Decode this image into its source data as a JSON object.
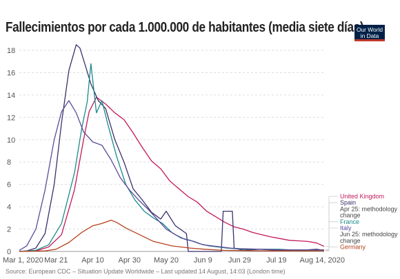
{
  "header": {
    "title": "Fallecimientos por cada 1.000.000 de habitantes (media siete días)",
    "logo": [
      "Our World",
      "in Data"
    ]
  },
  "footer": {
    "source": "Source: European CDC – Situation Update Worldwide – Last updated 14 August, 14:03 (London time)"
  },
  "chart_data": {
    "type": "line",
    "ylim": [
      0,
      18
    ],
    "yticks": [
      0,
      2,
      4,
      6,
      8,
      10,
      12,
      14,
      16,
      18
    ],
    "xlim": [
      "2020-03-01",
      "2020-08-14"
    ],
    "xticks": [
      {
        "label": "Mar 1, 2020",
        "date": "2020-03-01"
      },
      {
        "label": "Mar 21",
        "date": "2020-03-21"
      },
      {
        "label": "Apr 10",
        "date": "2020-04-10"
      },
      {
        "label": "Apr 30",
        "date": "2020-04-30"
      },
      {
        "label": "May 20",
        "date": "2020-05-20"
      },
      {
        "label": "Jun 9",
        "date": "2020-06-09"
      },
      {
        "label": "Jun 29",
        "date": "2020-06-29"
      },
      {
        "label": "Jul 19",
        "date": "2020-07-19"
      },
      {
        "label": "Aug 14, 2020",
        "date": "2020-08-14"
      }
    ],
    "series": [
      {
        "name": "United Kingdom",
        "color": "#c2185b",
        "points": [
          [
            "2020-03-01",
            0
          ],
          [
            "2020-03-10",
            0.05
          ],
          [
            "2020-03-17",
            0.4
          ],
          [
            "2020-03-24",
            1.5
          ],
          [
            "2020-03-31",
            5.5
          ],
          [
            "2020-04-05",
            10
          ],
          [
            "2020-04-08",
            12.5
          ],
          [
            "2020-04-12",
            13.8
          ],
          [
            "2020-04-17",
            13.2
          ],
          [
            "2020-04-22",
            12.4
          ],
          [
            "2020-04-27",
            11.8
          ],
          [
            "2020-05-02",
            10.6
          ],
          [
            "2020-05-07",
            9.3
          ],
          [
            "2020-05-12",
            8.1
          ],
          [
            "2020-05-17",
            7.4
          ],
          [
            "2020-05-22",
            6.3
          ],
          [
            "2020-05-27",
            5.6
          ],
          [
            "2020-06-01",
            4.9
          ],
          [
            "2020-06-06",
            4.4
          ],
          [
            "2020-06-11",
            3.6
          ],
          [
            "2020-06-16",
            3.1
          ],
          [
            "2020-06-21",
            2.6
          ],
          [
            "2020-06-26",
            2.2
          ],
          [
            "2020-07-01",
            2.0
          ],
          [
            "2020-07-06",
            1.7
          ],
          [
            "2020-07-11",
            1.5
          ],
          [
            "2020-07-16",
            1.3
          ],
          [
            "2020-07-21",
            1.15
          ],
          [
            "2020-07-26",
            1.0
          ],
          [
            "2020-07-31",
            0.95
          ],
          [
            "2020-08-05",
            0.9
          ],
          [
            "2020-08-10",
            0.75
          ],
          [
            "2020-08-14",
            0.45
          ]
        ]
      },
      {
        "name": "Spain",
        "color": "#3a2f6b",
        "points": [
          [
            "2020-03-01",
            0
          ],
          [
            "2020-03-05",
            0.05
          ],
          [
            "2020-03-10",
            0.3
          ],
          [
            "2020-03-15",
            1.6
          ],
          [
            "2020-03-20",
            6.0
          ],
          [
            "2020-03-24",
            11.5
          ],
          [
            "2020-03-28",
            16.2
          ],
          [
            "2020-04-01",
            18.5
          ],
          [
            "2020-04-03",
            18.2
          ],
          [
            "2020-04-06",
            16.6
          ],
          [
            "2020-04-09",
            15.0
          ],
          [
            "2020-04-13",
            13.5
          ],
          [
            "2020-04-17",
            12.8
          ],
          [
            "2020-04-22",
            10.0
          ],
          [
            "2020-04-27",
            8.0
          ],
          [
            "2020-05-02",
            5.6
          ],
          [
            "2020-05-07",
            4.6
          ],
          [
            "2020-05-12",
            3.5
          ],
          [
            "2020-05-17",
            2.9
          ],
          [
            "2020-05-20",
            3.6
          ],
          [
            "2020-05-25",
            2.3
          ],
          [
            "2020-05-31",
            1.6
          ],
          [
            "2020-06-01",
            0
          ],
          [
            "2020-06-10",
            0
          ],
          [
            "2020-06-19",
            0
          ],
          [
            "2020-06-20",
            3.6
          ],
          [
            "2020-06-25",
            3.6
          ],
          [
            "2020-06-26",
            0.3
          ],
          [
            "2020-07-01",
            0.1
          ],
          [
            "2020-07-10",
            0.2
          ],
          [
            "2020-07-20",
            0.1
          ],
          [
            "2020-07-31",
            0.1
          ],
          [
            "2020-08-10",
            0.2
          ],
          [
            "2020-08-14",
            0.1
          ]
        ]
      },
      {
        "name": "France",
        "color": "#1b8a8a",
        "points": [
          [
            "2020-03-01",
            0
          ],
          [
            "2020-03-10",
            0.1
          ],
          [
            "2020-03-17",
            0.6
          ],
          [
            "2020-03-24",
            2.5
          ],
          [
            "2020-03-31",
            7.0
          ],
          [
            "2020-04-04",
            11.0
          ],
          [
            "2020-04-07",
            13.4
          ],
          [
            "2020-04-09",
            16.8
          ],
          [
            "2020-04-12",
            12.4
          ],
          [
            "2020-04-15",
            13.5
          ],
          [
            "2020-04-18",
            11.5
          ],
          [
            "2020-04-23",
            8.5
          ],
          [
            "2020-04-28",
            6.0
          ],
          [
            "2020-05-03",
            4.6
          ],
          [
            "2020-05-08",
            3.6
          ],
          [
            "2020-05-13",
            3.0
          ],
          [
            "2020-05-18",
            2.5
          ],
          [
            "2020-05-23",
            1.7
          ],
          [
            "2020-05-28",
            1.2
          ],
          [
            "2020-06-02",
            1.0
          ],
          [
            "2020-06-07",
            0.7
          ],
          [
            "2020-06-12",
            0.5
          ],
          [
            "2020-06-17",
            0.4
          ],
          [
            "2020-06-22",
            0.3
          ],
          [
            "2020-07-01",
            0.2
          ],
          [
            "2020-07-10",
            0.2
          ],
          [
            "2020-07-20",
            0.2
          ],
          [
            "2020-08-01",
            0.1
          ],
          [
            "2020-08-14",
            0.1
          ]
        ]
      },
      {
        "name": "Italy",
        "color": "#5b4a9a",
        "points": [
          [
            "2020-03-01",
            0.1
          ],
          [
            "2020-03-05",
            0.5
          ],
          [
            "2020-03-10",
            2.0
          ],
          [
            "2020-03-15",
            5.5
          ],
          [
            "2020-03-20",
            10.0
          ],
          [
            "2020-03-24",
            12.5
          ],
          [
            "2020-03-28",
            13.5
          ],
          [
            "2020-04-01",
            12.4
          ],
          [
            "2020-04-05",
            10.7
          ],
          [
            "2020-04-10",
            9.8
          ],
          [
            "2020-04-15",
            9.5
          ],
          [
            "2020-04-20",
            8.2
          ],
          [
            "2020-04-25",
            6.6
          ],
          [
            "2020-04-30",
            5.5
          ],
          [
            "2020-05-05",
            4.6
          ],
          [
            "2020-05-10",
            3.8
          ],
          [
            "2020-05-15",
            2.9
          ],
          [
            "2020-05-20",
            2.0
          ],
          [
            "2020-05-25",
            1.5
          ],
          [
            "2020-05-30",
            1.1
          ],
          [
            "2020-06-04",
            0.9
          ],
          [
            "2020-06-09",
            0.6
          ],
          [
            "2020-06-14",
            0.5
          ],
          [
            "2020-06-19",
            0.4
          ],
          [
            "2020-06-24",
            0.3
          ],
          [
            "2020-06-29",
            0.25
          ],
          [
            "2020-07-10",
            0.2
          ],
          [
            "2020-07-20",
            0.15
          ],
          [
            "2020-08-01",
            0.15
          ],
          [
            "2020-08-14",
            0.15
          ]
        ]
      },
      {
        "name": "Germany",
        "color": "#b5411c",
        "points": [
          [
            "2020-03-01",
            0
          ],
          [
            "2020-03-15",
            0.05
          ],
          [
            "2020-03-21",
            0.2
          ],
          [
            "2020-03-28",
            0.8
          ],
          [
            "2020-04-04",
            1.7
          ],
          [
            "2020-04-10",
            2.3
          ],
          [
            "2020-04-15",
            2.5
          ],
          [
            "2020-04-20",
            2.8
          ],
          [
            "2020-04-23",
            2.6
          ],
          [
            "2020-04-28",
            2.1
          ],
          [
            "2020-05-03",
            1.7
          ],
          [
            "2020-05-08",
            1.3
          ],
          [
            "2020-05-13",
            0.9
          ],
          [
            "2020-05-18",
            0.7
          ],
          [
            "2020-05-23",
            0.5
          ],
          [
            "2020-05-28",
            0.4
          ],
          [
            "2020-06-02",
            0.3
          ],
          [
            "2020-06-10",
            0.2
          ],
          [
            "2020-06-20",
            0.1
          ],
          [
            "2020-07-01",
            0.08
          ],
          [
            "2020-07-15",
            0.05
          ],
          [
            "2020-08-14",
            0.05
          ]
        ]
      }
    ],
    "legend": [
      {
        "text": "United Kingdom",
        "color": "#c2185b"
      },
      {
        "text": "Spain",
        "color": "#3a2f6b"
      },
      {
        "text": "Apr 25: methodology",
        "color": "#444444"
      },
      {
        "text": "change",
        "color": "#444444"
      },
      {
        "text": "France",
        "color": "#1b8a8a"
      },
      {
        "text": "Italy",
        "color": "#5b4a9a"
      },
      {
        "text": "Jun 25: methodology",
        "color": "#444444"
      },
      {
        "text": "change",
        "color": "#444444"
      },
      {
        "text": "Germany",
        "color": "#b5411c"
      }
    ]
  }
}
